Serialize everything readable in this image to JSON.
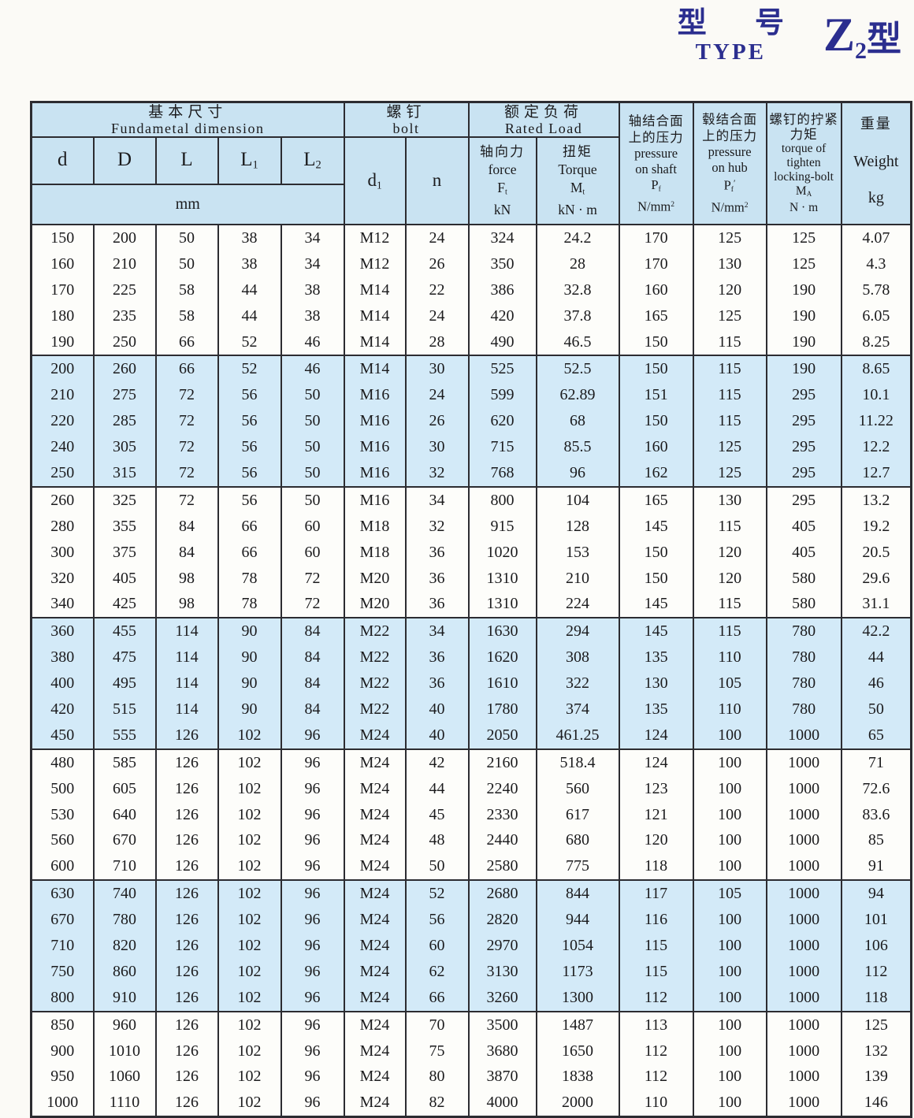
{
  "title": {
    "cn": "型 号",
    "en": "TYPE",
    "model": {
      "letter": "Z",
      "sub": "2",
      "suffix": "型"
    }
  },
  "colors": {
    "accent_navy": "#2b2e8f",
    "header_bg": "#c9e3f2",
    "band_bg": "#d3eaf8",
    "border": "#2c2c31"
  },
  "table": {
    "header": {
      "basic": {
        "cn": "基本尺寸",
        "en": "Fundametal dimension",
        "unit": "mm",
        "cols": [
          {
            "b": "d"
          },
          {
            "b": "D"
          },
          {
            "b": "L"
          },
          {
            "b": "L",
            "s": "1"
          },
          {
            "b": "L",
            "s": "2"
          }
        ]
      },
      "bolt": {
        "cn": "螺钉",
        "en": "bolt",
        "cols": [
          {
            "b": "d",
            "s": "1"
          },
          {
            "b": "n"
          }
        ]
      },
      "rated": {
        "cn": "额定负荷",
        "en": "Rated Load",
        "force": {
          "cn": "轴向力",
          "en": "force",
          "sym": "F",
          "sub": "t",
          "unit": "kN"
        },
        "torque": {
          "cn": "扭矩",
          "en": "Torque",
          "sym": "M",
          "sub": "t",
          "unit": "kN · m"
        }
      },
      "pshaft": {
        "cn1": "轴结合面",
        "cn2": "上的压力",
        "en1": "pressure",
        "en2": "on shaft",
        "sym": "P",
        "sub": "f",
        "unit": "N/mm",
        "sup": "2"
      },
      "phub": {
        "cn1": "毂结合面",
        "cn2": "上的压力",
        "en1": "pressure",
        "en2": "on hub",
        "sym": "P",
        "sub": "f",
        "prime": "′",
        "unit": "N/mm",
        "sup": "2"
      },
      "mbolt": {
        "cn1": "螺钉的拧紧",
        "cn2": "力矩",
        "en1": "torque of",
        "en2": "tighten",
        "en3": "locking-bolt",
        "sym": "M",
        "sub": "A",
        "unit": "N · m"
      },
      "weight": {
        "cn": "重量",
        "en": "Weight",
        "unit": "kg"
      }
    },
    "rows": [
      [
        150,
        200,
        50,
        38,
        34,
        "M12",
        24,
        324,
        24.2,
        170,
        125,
        125,
        4.07
      ],
      [
        160,
        210,
        50,
        38,
        34,
        "M12",
        26,
        350,
        28,
        170,
        130,
        125,
        4.3
      ],
      [
        170,
        225,
        58,
        44,
        38,
        "M14",
        22,
        386,
        32.8,
        160,
        120,
        190,
        5.78
      ],
      [
        180,
        235,
        58,
        44,
        38,
        "M14",
        24,
        420,
        37.8,
        165,
        125,
        190,
        6.05
      ],
      [
        190,
        250,
        66,
        52,
        46,
        "M14",
        28,
        490,
        46.5,
        150,
        115,
        190,
        8.25
      ],
      [
        200,
        260,
        66,
        52,
        46,
        "M14",
        30,
        525,
        52.5,
        150,
        115,
        190,
        8.65
      ],
      [
        210,
        275,
        72,
        56,
        50,
        "M16",
        24,
        599,
        62.89,
        151,
        115,
        295,
        10.1
      ],
      [
        220,
        285,
        72,
        56,
        50,
        "M16",
        26,
        620,
        68,
        150,
        115,
        295,
        11.22
      ],
      [
        240,
        305,
        72,
        56,
        50,
        "M16",
        30,
        715,
        85.5,
        160,
        125,
        295,
        12.2
      ],
      [
        250,
        315,
        72,
        56,
        50,
        "M16",
        32,
        768,
        96,
        162,
        125,
        295,
        12.7
      ],
      [
        260,
        325,
        72,
        56,
        50,
        "M16",
        34,
        800,
        104,
        165,
        130,
        295,
        13.2
      ],
      [
        280,
        355,
        84,
        66,
        60,
        "M18",
        32,
        915,
        128,
        145,
        115,
        405,
        19.2
      ],
      [
        300,
        375,
        84,
        66,
        60,
        "M18",
        36,
        1020,
        153,
        150,
        120,
        405,
        20.5
      ],
      [
        320,
        405,
        98,
        78,
        72,
        "M20",
        36,
        1310,
        210,
        150,
        120,
        580,
        29.6
      ],
      [
        340,
        425,
        98,
        78,
        72,
        "M20",
        36,
        1310,
        224,
        145,
        115,
        580,
        31.1
      ],
      [
        360,
        455,
        114,
        90,
        84,
        "M22",
        34,
        1630,
        294,
        145,
        115,
        780,
        42.2
      ],
      [
        380,
        475,
        114,
        90,
        84,
        "M22",
        36,
        1620,
        308,
        135,
        110,
        780,
        44
      ],
      [
        400,
        495,
        114,
        90,
        84,
        "M22",
        36,
        1610,
        322,
        130,
        105,
        780,
        46
      ],
      [
        420,
        515,
        114,
        90,
        84,
        "M22",
        40,
        1780,
        374,
        135,
        110,
        780,
        50
      ],
      [
        450,
        555,
        126,
        102,
        96,
        "M24",
        40,
        2050,
        461.25,
        124,
        100,
        1000,
        65
      ],
      [
        480,
        585,
        126,
        102,
        96,
        "M24",
        42,
        2160,
        518.4,
        124,
        100,
        1000,
        71
      ],
      [
        500,
        605,
        126,
        102,
        96,
        "M24",
        44,
        2240,
        560,
        123,
        100,
        1000,
        72.6
      ],
      [
        530,
        640,
        126,
        102,
        96,
        "M24",
        45,
        2330,
        617,
        121,
        100,
        1000,
        83.6
      ],
      [
        560,
        670,
        126,
        102,
        96,
        "M24",
        48,
        2440,
        680,
        120,
        100,
        1000,
        85
      ],
      [
        600,
        710,
        126,
        102,
        96,
        "M24",
        50,
        2580,
        775,
        118,
        100,
        1000,
        91
      ],
      [
        630,
        740,
        126,
        102,
        96,
        "M24",
        52,
        2680,
        844,
        117,
        105,
        1000,
        94
      ],
      [
        670,
        780,
        126,
        102,
        96,
        "M24",
        56,
        2820,
        944,
        116,
        100,
        1000,
        101
      ],
      [
        710,
        820,
        126,
        102,
        96,
        "M24",
        60,
        2970,
        1054,
        115,
        100,
        1000,
        106
      ],
      [
        750,
        860,
        126,
        102,
        96,
        "M24",
        62,
        3130,
        1173,
        115,
        100,
        1000,
        112
      ],
      [
        800,
        910,
        126,
        102,
        96,
        "M24",
        66,
        3260,
        1300,
        112,
        100,
        1000,
        118
      ],
      [
        850,
        960,
        126,
        102,
        96,
        "M24",
        70,
        3500,
        1487,
        113,
        100,
        1000,
        125
      ],
      [
        900,
        1010,
        126,
        102,
        96,
        "M24",
        75,
        3680,
        1650,
        112,
        100,
        1000,
        132
      ],
      [
        950,
        1060,
        126,
        102,
        96,
        "M24",
        80,
        3870,
        1838,
        112,
        100,
        1000,
        139
      ],
      [
        1000,
        1110,
        126,
        102,
        96,
        "M24",
        82,
        4000,
        2000,
        110,
        100,
        1000,
        146
      ]
    ]
  }
}
